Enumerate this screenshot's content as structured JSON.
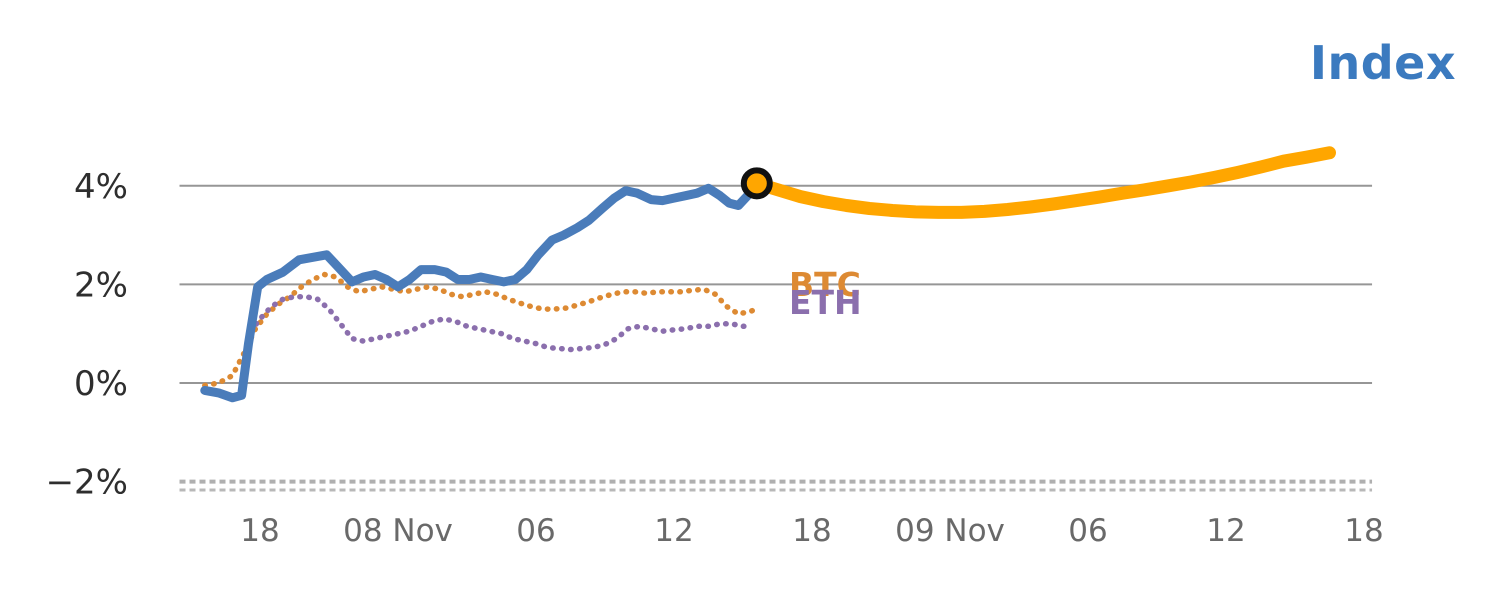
{
  "title": "Index",
  "labels": {
    "btc": "BTC",
    "eth": "ETH"
  },
  "colors": {
    "index_line": "#4a7cba",
    "forecast_line": "#ffa600",
    "btc_line": "#dd8a33",
    "eth_line": "#8b6fad",
    "title": "#3b7abf",
    "grid": "#969696",
    "x_tick_text": "#696969",
    "y_tick_text": "#2e2e2e",
    "marker_ring": "#111111",
    "marker_fill": "#ffa600"
  },
  "chart_data": {
    "type": "line",
    "title": "Index",
    "grid": "horizontal",
    "legend_position": "inline-labels",
    "x_ticks": [
      18,
      24,
      30,
      36,
      42,
      48,
      54,
      60,
      66
    ],
    "x_tick_labels": [
      "18",
      "08 Nov",
      "06",
      "12",
      "18",
      "09 Nov",
      "06",
      "12",
      "18"
    ],
    "y_ticks": [
      4,
      2,
      0,
      -2
    ],
    "y_tick_labels": [
      "4%",
      "2%",
      "0%",
      "−2%"
    ],
    "xlim": [
      14.5,
      66.35
    ],
    "ylim": [
      -2.6,
      5.4
    ],
    "series": [
      {
        "name": "Index",
        "style": "solid",
        "color": "#4a7cba",
        "width": 9,
        "x": [
          15.6,
          16.2,
          16.8,
          17.2,
          17.5,
          17.9,
          18.3,
          19.0,
          19.7,
          20.3,
          20.9,
          21.4,
          22.0,
          22.5,
          23.0,
          23.5,
          24.0,
          24.5,
          25.0,
          25.6,
          26.1,
          26.6,
          27.1,
          27.6,
          28.1,
          28.6,
          29.1,
          29.6,
          30.1,
          30.7,
          31.2,
          31.8,
          32.3,
          32.9,
          33.4,
          33.9,
          34.4,
          35.0,
          35.5,
          36.0,
          36.5,
          37.0,
          37.5,
          38.0,
          38.4,
          38.8,
          39.2,
          39.6
        ],
        "y": [
          -0.15,
          -0.2,
          -0.3,
          -0.25,
          0.8,
          1.95,
          2.1,
          2.25,
          2.5,
          2.55,
          2.6,
          2.35,
          2.05,
          2.15,
          2.2,
          2.1,
          1.95,
          2.1,
          2.3,
          2.3,
          2.25,
          2.1,
          2.1,
          2.15,
          2.1,
          2.05,
          2.1,
          2.3,
          2.6,
          2.9,
          3.0,
          3.15,
          3.3,
          3.55,
          3.75,
          3.9,
          3.85,
          3.72,
          3.7,
          3.75,
          3.8,
          3.85,
          3.95,
          3.8,
          3.65,
          3.6,
          3.8,
          4.05
        ]
      },
      {
        "name": "Index forecast",
        "style": "solid",
        "color": "#ffa600",
        "width": 13,
        "x": [
          39.6,
          40.5,
          41.5,
          42.5,
          43.5,
          44.5,
          45.5,
          46.5,
          47.5,
          48.5,
          49.5,
          50.5,
          51.5,
          52.5,
          53.5,
          54.5,
          55.5,
          56.5,
          57.5,
          58.5,
          59.5,
          60.5,
          61.5,
          62.5,
          63.5,
          64.5
        ],
        "y": [
          4.05,
          3.92,
          3.78,
          3.68,
          3.6,
          3.54,
          3.5,
          3.47,
          3.46,
          3.46,
          3.48,
          3.52,
          3.57,
          3.63,
          3.7,
          3.77,
          3.85,
          3.92,
          4.0,
          4.08,
          4.17,
          4.27,
          4.38,
          4.5,
          4.58,
          4.67
        ]
      },
      {
        "name": "BTC",
        "style": "dotted",
        "color": "#dd8a33",
        "width": 5.5,
        "x": [
          15.6,
          16.2,
          16.8,
          17.3,
          17.8,
          18.3,
          18.8,
          19.3,
          19.8,
          20.3,
          20.8,
          21.3,
          21.8,
          22.3,
          22.8,
          23.3,
          23.8,
          24.3,
          24.8,
          25.3,
          25.8,
          26.3,
          26.8,
          27.3,
          27.8,
          28.3,
          28.8,
          29.3,
          29.8,
          30.3,
          30.8,
          31.3,
          31.8,
          32.3,
          32.8,
          33.3,
          33.8,
          34.3,
          34.8,
          35.3,
          35.8,
          36.3,
          36.8,
          37.3,
          37.8,
          38.3,
          38.8,
          39.3,
          39.6
        ],
        "y": [
          -0.05,
          0.0,
          0.15,
          0.6,
          1.1,
          1.4,
          1.6,
          1.75,
          1.95,
          2.1,
          2.2,
          2.15,
          1.95,
          1.85,
          1.9,
          1.95,
          1.9,
          1.85,
          1.9,
          1.95,
          1.9,
          1.8,
          1.75,
          1.8,
          1.85,
          1.8,
          1.7,
          1.62,
          1.55,
          1.5,
          1.5,
          1.52,
          1.58,
          1.65,
          1.73,
          1.8,
          1.85,
          1.85,
          1.82,
          1.85,
          1.85,
          1.85,
          1.88,
          1.9,
          1.8,
          1.55,
          1.4,
          1.45,
          1.5
        ]
      },
      {
        "name": "ETH",
        "style": "dotted",
        "color": "#8b6fad",
        "width": 5.5,
        "x": [
          17.6,
          18.0,
          18.5,
          19.0,
          19.5,
          20.0,
          20.5,
          21.0,
          21.5,
          22.0,
          22.5,
          23.0,
          23.5,
          24.0,
          24.5,
          25.0,
          25.5,
          26.0,
          26.5,
          27.0,
          27.5,
          28.0,
          28.5,
          29.0,
          29.5,
          30.0,
          30.5,
          31.0,
          31.5,
          32.0,
          32.5,
          33.0,
          33.5,
          34.0,
          34.5,
          35.0,
          35.5,
          36.0,
          36.5,
          37.0,
          37.5,
          38.0,
          38.5,
          39.0,
          39.3
        ],
        "y": [
          1.05,
          1.3,
          1.55,
          1.7,
          1.75,
          1.75,
          1.7,
          1.5,
          1.2,
          0.9,
          0.85,
          0.9,
          0.95,
          1.0,
          1.05,
          1.15,
          1.25,
          1.3,
          1.25,
          1.15,
          1.1,
          1.05,
          1.0,
          0.9,
          0.85,
          0.8,
          0.72,
          0.7,
          0.68,
          0.7,
          0.72,
          0.78,
          0.9,
          1.1,
          1.15,
          1.1,
          1.05,
          1.08,
          1.1,
          1.15,
          1.15,
          1.2,
          1.2,
          1.15,
          1.15
        ]
      }
    ],
    "marker": {
      "x": 39.6,
      "y": 4.05
    }
  }
}
